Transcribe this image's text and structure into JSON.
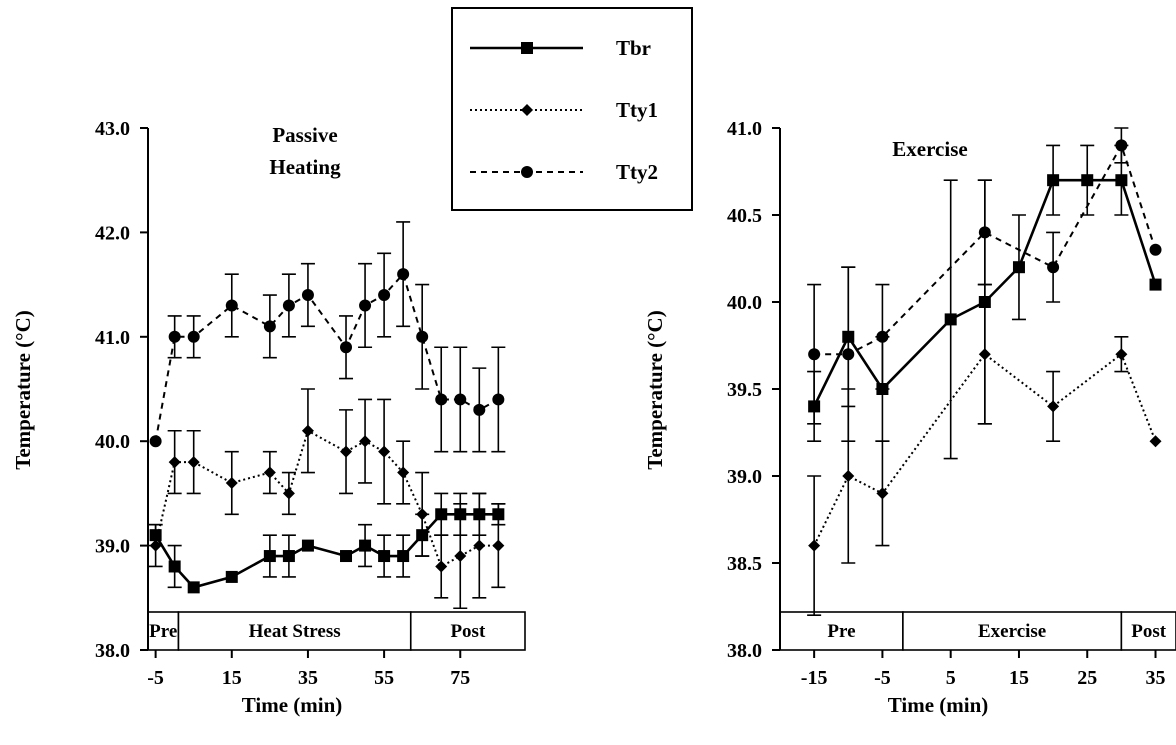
{
  "legend": {
    "entries": [
      {
        "label": "Tbr",
        "series": "Tbr"
      },
      {
        "label": "Tty1",
        "series": "Tty1"
      },
      {
        "label": "Tty2",
        "series": "Tty2"
      }
    ]
  },
  "chart_data": [
    {
      "type": "line",
      "title": "Passive\nHeating",
      "xlabel": "Time (min)",
      "ylabel": "Temperature (°C)",
      "xlim": [
        -7,
        92
      ],
      "ylim": [
        38.0,
        43.0
      ],
      "xticks": [
        -5,
        15,
        35,
        55,
        75
      ],
      "yticks": [
        38.0,
        39.0,
        40.0,
        41.0,
        42.0,
        43.0
      ],
      "ytick_labels": [
        "38.0",
        "39.0",
        "40.0",
        "41.0",
        "42.0",
        "43.0"
      ],
      "legend": "top-center",
      "grid": false,
      "phases": [
        {
          "label": "Pre",
          "x_start": -7,
          "x_end": 1
        },
        {
          "label": "Heat Stress",
          "x_start": 1,
          "x_end": 62
        },
        {
          "label": "Post",
          "x_start": 62,
          "x_end": 92
        }
      ],
      "series": [
        {
          "name": "Tbr",
          "marker": "square",
          "line": "solid",
          "x": [
            -5,
            0,
            5,
            15,
            25,
            30,
            35,
            45,
            50,
            55,
            60,
            65,
            70,
            75,
            80,
            85
          ],
          "y": [
            39.1,
            38.8,
            38.6,
            38.7,
            38.9,
            38.9,
            39.0,
            38.9,
            39.0,
            38.9,
            38.9,
            39.1,
            39.3,
            39.3,
            39.3,
            39.3
          ],
          "err": [
            0.1,
            0.2,
            0.0,
            0.0,
            0.2,
            0.2,
            0.0,
            0.0,
            0.2,
            0.2,
            0.2,
            0.2,
            0.2,
            0.2,
            0.2,
            0.1
          ]
        },
        {
          "name": "Tty1",
          "marker": "diamond",
          "line": "dotted",
          "x": [
            -5,
            0,
            5,
            15,
            25,
            30,
            35,
            45,
            50,
            55,
            60,
            65,
            70,
            75,
            80,
            85
          ],
          "y": [
            39.0,
            39.8,
            39.8,
            39.6,
            39.7,
            39.5,
            40.1,
            39.9,
            40.0,
            39.9,
            39.7,
            39.3,
            38.8,
            38.9,
            39.0,
            39.0
          ],
          "err": [
            0.2,
            0.3,
            0.3,
            0.3,
            0.2,
            0.2,
            0.4,
            0.4,
            0.4,
            0.5,
            0.3,
            0.4,
            0.3,
            0.5,
            0.5,
            0.4
          ]
        },
        {
          "name": "Tty2",
          "marker": "circle",
          "line": "dashed",
          "x": [
            -5,
            0,
            5,
            15,
            25,
            30,
            35,
            45,
            50,
            55,
            60,
            65,
            70,
            75,
            80,
            85
          ],
          "y": [
            40.0,
            41.0,
            41.0,
            41.3,
            41.1,
            41.3,
            41.4,
            40.9,
            41.3,
            41.4,
            41.6,
            41.0,
            40.4,
            40.4,
            40.3,
            40.4
          ],
          "err": [
            0.0,
            0.2,
            0.2,
            0.3,
            0.3,
            0.3,
            0.3,
            0.3,
            0.4,
            0.4,
            0.5,
            0.5,
            0.5,
            0.5,
            0.4,
            0.5
          ]
        }
      ]
    },
    {
      "type": "line",
      "title": "Exercise",
      "xlabel": "Time (min)",
      "ylabel": "Temperature (°C)",
      "xlim": [
        -20,
        38
      ],
      "ylim": [
        38.0,
        41.0
      ],
      "xticks": [
        -15,
        -5,
        5,
        15,
        25,
        35
      ],
      "yticks": [
        38.0,
        38.5,
        39.0,
        39.5,
        40.0,
        40.5,
        41.0
      ],
      "ytick_labels": [
        "38.0",
        "38.5",
        "39.0",
        "39.5",
        "40.0",
        "40.5",
        "41.0"
      ],
      "grid": false,
      "phases": [
        {
          "label": "Pre",
          "x_start": -20,
          "x_end": -2
        },
        {
          "label": "Exercise",
          "x_start": -2,
          "x_end": 30
        },
        {
          "label": "Post",
          "x_start": 30,
          "x_end": 38
        }
      ],
      "series": [
        {
          "name": "Tbr",
          "marker": "square",
          "line": "solid",
          "x": [
            -15,
            -10,
            -5,
            5,
            10,
            15,
            20,
            25,
            30,
            35
          ],
          "y": [
            39.4,
            39.8,
            39.5,
            39.9,
            40.0,
            40.2,
            40.7,
            40.7,
            40.7,
            40.1
          ],
          "err": [
            0.2,
            0.4,
            0.3,
            0.8,
            0.7,
            0.3,
            0.2,
            0.2,
            0.2,
            0.0
          ]
        },
        {
          "name": "Tty1",
          "marker": "diamond",
          "line": "dotted",
          "x": [
            -15,
            -10,
            -5,
            10,
            20,
            30,
            35
          ],
          "y": [
            38.6,
            39.0,
            38.9,
            39.7,
            39.4,
            39.7,
            39.2
          ],
          "err": [
            0.4,
            0.5,
            0.3,
            0.4,
            0.2,
            0.1,
            0.0
          ]
        },
        {
          "name": "Tty2",
          "marker": "circle",
          "line": "dashed",
          "x": [
            -15,
            -10,
            -5,
            10,
            20,
            30,
            35
          ],
          "y": [
            39.7,
            39.7,
            39.8,
            40.4,
            40.2,
            40.9,
            40.3
          ],
          "err": [
            0.4,
            0.5,
            0.3,
            0.3,
            0.2,
            0.1,
            0.0
          ]
        }
      ]
    }
  ]
}
